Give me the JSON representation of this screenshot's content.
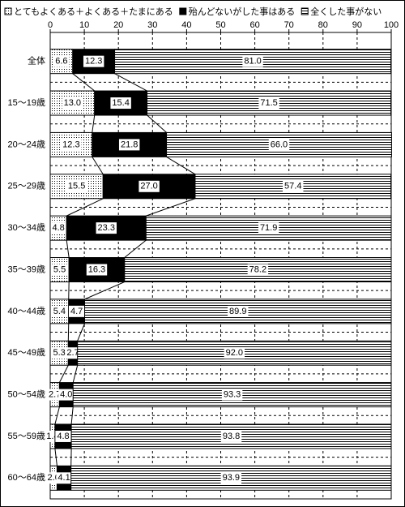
{
  "chart_data": {
    "type": "stacked-barh",
    "categories": [
      "全体",
      "15〜19歳",
      "20〜24歳",
      "25〜29歳",
      "30〜34歳",
      "35〜39歳",
      "40〜44歳",
      "45〜49歳",
      "50〜54歳",
      "55〜59歳",
      "60〜64歳"
    ],
    "series": [
      {
        "name": "とてもよくある＋よくある＋たまにある",
        "color": "#ffffff",
        "values": [
          6.6,
          13.0,
          12.3,
          15.5,
          4.8,
          5.5,
          5.4,
          5.3,
          2.7,
          1.4,
          2.0
        ],
        "value_labels": [
          "6.6",
          "13.0",
          "12.3",
          "15.5",
          "4.8",
          "5.5",
          "5.4",
          "5.3",
          "2.7",
          "1.4",
          "2.0"
        ]
      },
      {
        "name": "殆んどないがした事はある",
        "color": "#000000",
        "values": [
          12.3,
          15.4,
          21.8,
          27.0,
          23.3,
          16.3,
          4.7,
          2.7,
          4.0,
          4.8,
          4.1
        ],
        "value_labels": [
          "12.3",
          "15.4",
          "21.8",
          "27.0",
          "23.3",
          "16.3",
          "4.7",
          "2.7",
          "4.0",
          "4.8",
          "4.1"
        ]
      },
      {
        "name": "全くした事がない",
        "color": "#ffffff",
        "values": [
          81.0,
          71.5,
          66.0,
          57.4,
          71.9,
          78.2,
          89.9,
          92.0,
          93.3,
          93.8,
          93.9
        ],
        "value_labels": [
          "81.0",
          "71.5",
          "66.0",
          "57.4",
          "71.9",
          "78.2",
          "89.9",
          "92.0",
          "93.3",
          "93.8",
          "93.9"
        ]
      }
    ],
    "xlim": [
      0,
      100
    ],
    "xticks": [
      0,
      10,
      20,
      30,
      40,
      50,
      60,
      70,
      80,
      90,
      100
    ],
    "grid": true
  }
}
